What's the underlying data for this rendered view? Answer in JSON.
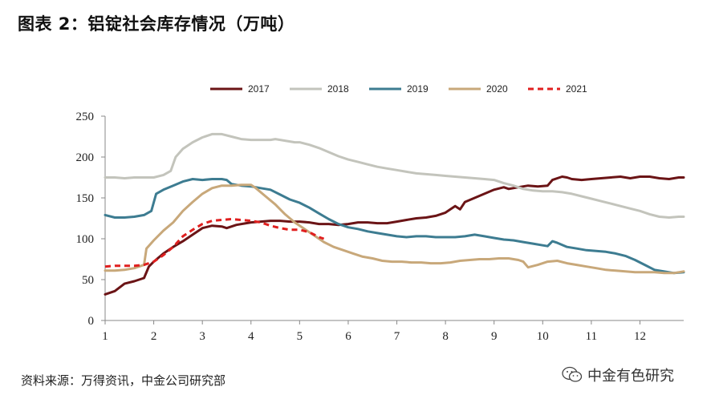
{
  "header": {
    "title": "图表 2：铝锭社会库存情况（万吨）"
  },
  "footer": {
    "source": "资料来源：万得资讯，中金公司研究部",
    "brand": "中金有色研究",
    "brand_icon": "wechat-icon"
  },
  "chart_data": {
    "type": "line",
    "title": "",
    "xlabel": "",
    "ylabel": "",
    "xlim": [
      1,
      12.9
    ],
    "ylim": [
      0,
      250
    ],
    "xticks": [
      1,
      2,
      3,
      4,
      5,
      6,
      7,
      8,
      9,
      10,
      11,
      12
    ],
    "xtick_labels": [
      "1",
      "2",
      "3",
      "4",
      "5",
      "6",
      "7",
      "8",
      "9",
      "10",
      "11",
      "12"
    ],
    "yticks": [
      0,
      50,
      100,
      150,
      200,
      250
    ],
    "ytick_labels": [
      "0",
      "50",
      "100",
      "150",
      "200",
      "250"
    ],
    "grid": false,
    "legend_position": "top",
    "series": [
      {
        "name": "2017",
        "color": "#6B1416",
        "dash": "solid",
        "points": [
          [
            1.0,
            32
          ],
          [
            1.2,
            36
          ],
          [
            1.4,
            45
          ],
          [
            1.6,
            48
          ],
          [
            1.8,
            52
          ],
          [
            1.9,
            66
          ],
          [
            2.0,
            72
          ],
          [
            2.2,
            82
          ],
          [
            2.4,
            90
          ],
          [
            2.6,
            97
          ],
          [
            2.8,
            105
          ],
          [
            3.0,
            113
          ],
          [
            3.2,
            116
          ],
          [
            3.4,
            115
          ],
          [
            3.5,
            113
          ],
          [
            3.7,
            117
          ],
          [
            3.9,
            119
          ],
          [
            4.0,
            120
          ],
          [
            4.2,
            121
          ],
          [
            4.4,
            122
          ],
          [
            4.6,
            122
          ],
          [
            4.8,
            121
          ],
          [
            5.0,
            121
          ],
          [
            5.2,
            120
          ],
          [
            5.4,
            118
          ],
          [
            5.6,
            118
          ],
          [
            5.8,
            117
          ],
          [
            6.0,
            118
          ],
          [
            6.2,
            120
          ],
          [
            6.4,
            120
          ],
          [
            6.6,
            119
          ],
          [
            6.8,
            119
          ],
          [
            7.0,
            121
          ],
          [
            7.2,
            123
          ],
          [
            7.4,
            125
          ],
          [
            7.6,
            126
          ],
          [
            7.8,
            128
          ],
          [
            8.0,
            132
          ],
          [
            8.1,
            136
          ],
          [
            8.2,
            140
          ],
          [
            8.3,
            136
          ],
          [
            8.4,
            145
          ],
          [
            8.6,
            150
          ],
          [
            8.8,
            155
          ],
          [
            9.0,
            160
          ],
          [
            9.2,
            163
          ],
          [
            9.3,
            161
          ],
          [
            9.5,
            163
          ],
          [
            9.7,
            165
          ],
          [
            9.9,
            164
          ],
          [
            10.1,
            165
          ],
          [
            10.2,
            172
          ],
          [
            10.4,
            176
          ],
          [
            10.5,
            175
          ],
          [
            10.6,
            173
          ],
          [
            10.8,
            172
          ],
          [
            11.0,
            173
          ],
          [
            11.2,
            174
          ],
          [
            11.4,
            175
          ],
          [
            11.6,
            176
          ],
          [
            11.8,
            174
          ],
          [
            12.0,
            176
          ],
          [
            12.2,
            176
          ],
          [
            12.4,
            174
          ],
          [
            12.6,
            173
          ],
          [
            12.8,
            175
          ],
          [
            12.9,
            175
          ]
        ]
      },
      {
        "name": "2018",
        "color": "#C3C4BC",
        "dash": "solid",
        "points": [
          [
            1.0,
            175
          ],
          [
            1.2,
            175
          ],
          [
            1.4,
            174
          ],
          [
            1.6,
            175
          ],
          [
            1.8,
            175
          ],
          [
            1.9,
            175
          ],
          [
            2.0,
            175
          ],
          [
            2.2,
            178
          ],
          [
            2.35,
            183
          ],
          [
            2.45,
            200
          ],
          [
            2.6,
            210
          ],
          [
            2.8,
            218
          ],
          [
            3.0,
            224
          ],
          [
            3.2,
            228
          ],
          [
            3.4,
            228
          ],
          [
            3.6,
            225
          ],
          [
            3.8,
            222
          ],
          [
            4.0,
            221
          ],
          [
            4.2,
            221
          ],
          [
            4.4,
            221
          ],
          [
            4.5,
            222
          ],
          [
            4.7,
            220
          ],
          [
            4.9,
            218
          ],
          [
            5.0,
            218
          ],
          [
            5.2,
            215
          ],
          [
            5.4,
            211
          ],
          [
            5.6,
            206
          ],
          [
            5.8,
            201
          ],
          [
            6.0,
            197
          ],
          [
            6.2,
            194
          ],
          [
            6.4,
            191
          ],
          [
            6.6,
            188
          ],
          [
            6.8,
            186
          ],
          [
            7.0,
            184
          ],
          [
            7.2,
            182
          ],
          [
            7.4,
            180
          ],
          [
            7.6,
            179
          ],
          [
            7.8,
            178
          ],
          [
            8.0,
            177
          ],
          [
            8.2,
            176
          ],
          [
            8.4,
            175
          ],
          [
            8.6,
            174
          ],
          [
            8.8,
            173
          ],
          [
            9.0,
            172
          ],
          [
            9.2,
            168
          ],
          [
            9.4,
            165
          ],
          [
            9.6,
            161
          ],
          [
            9.8,
            159
          ],
          [
            10.0,
            158
          ],
          [
            10.2,
            158
          ],
          [
            10.4,
            157
          ],
          [
            10.6,
            155
          ],
          [
            10.8,
            152
          ],
          [
            11.0,
            149
          ],
          [
            11.2,
            146
          ],
          [
            11.4,
            143
          ],
          [
            11.6,
            140
          ],
          [
            11.8,
            137
          ],
          [
            12.0,
            134
          ],
          [
            12.2,
            130
          ],
          [
            12.4,
            127
          ],
          [
            12.6,
            126
          ],
          [
            12.8,
            127
          ],
          [
            12.9,
            127
          ]
        ]
      },
      {
        "name": "2019",
        "color": "#3D7C91",
        "dash": "solid",
        "points": [
          [
            1.0,
            129
          ],
          [
            1.2,
            126
          ],
          [
            1.4,
            126
          ],
          [
            1.6,
            127
          ],
          [
            1.8,
            129
          ],
          [
            1.95,
            134
          ],
          [
            2.05,
            155
          ],
          [
            2.2,
            160
          ],
          [
            2.4,
            165
          ],
          [
            2.6,
            170
          ],
          [
            2.8,
            173
          ],
          [
            3.0,
            172
          ],
          [
            3.2,
            173
          ],
          [
            3.4,
            173
          ],
          [
            3.5,
            172
          ],
          [
            3.6,
            167
          ],
          [
            3.8,
            165
          ],
          [
            4.0,
            164
          ],
          [
            4.2,
            162
          ],
          [
            4.4,
            160
          ],
          [
            4.6,
            154
          ],
          [
            4.8,
            148
          ],
          [
            5.0,
            144
          ],
          [
            5.2,
            138
          ],
          [
            5.4,
            131
          ],
          [
            5.6,
            124
          ],
          [
            5.8,
            118
          ],
          [
            6.0,
            114
          ],
          [
            6.2,
            112
          ],
          [
            6.4,
            109
          ],
          [
            6.6,
            107
          ],
          [
            6.8,
            105
          ],
          [
            7.0,
            103
          ],
          [
            7.2,
            102
          ],
          [
            7.4,
            103
          ],
          [
            7.6,
            103
          ],
          [
            7.8,
            102
          ],
          [
            8.0,
            102
          ],
          [
            8.2,
            102
          ],
          [
            8.4,
            103
          ],
          [
            8.6,
            105
          ],
          [
            8.8,
            103
          ],
          [
            9.0,
            101
          ],
          [
            9.2,
            99
          ],
          [
            9.4,
            98
          ],
          [
            9.6,
            96
          ],
          [
            9.8,
            94
          ],
          [
            10.0,
            92
          ],
          [
            10.1,
            91
          ],
          [
            10.2,
            97
          ],
          [
            10.3,
            95
          ],
          [
            10.5,
            90
          ],
          [
            10.7,
            88
          ],
          [
            10.9,
            86
          ],
          [
            11.1,
            85
          ],
          [
            11.3,
            84
          ],
          [
            11.5,
            82
          ],
          [
            11.7,
            79
          ],
          [
            11.9,
            74
          ],
          [
            12.1,
            68
          ],
          [
            12.3,
            62
          ],
          [
            12.5,
            60
          ],
          [
            12.7,
            58
          ],
          [
            12.9,
            59
          ]
        ]
      },
      {
        "name": "2020",
        "color": "#C8A87A",
        "dash": "solid",
        "points": [
          [
            1.0,
            61
          ],
          [
            1.2,
            61
          ],
          [
            1.4,
            62
          ],
          [
            1.6,
            64
          ],
          [
            1.8,
            68
          ],
          [
            1.85,
            88
          ],
          [
            2.0,
            98
          ],
          [
            2.2,
            110
          ],
          [
            2.4,
            120
          ],
          [
            2.6,
            134
          ],
          [
            2.8,
            145
          ],
          [
            3.0,
            155
          ],
          [
            3.2,
            162
          ],
          [
            3.4,
            165
          ],
          [
            3.6,
            165
          ],
          [
            3.8,
            166
          ],
          [
            4.0,
            166
          ],
          [
            4.1,
            162
          ],
          [
            4.3,
            152
          ],
          [
            4.5,
            142
          ],
          [
            4.7,
            130
          ],
          [
            4.9,
            120
          ],
          [
            5.1,
            112
          ],
          [
            5.3,
            104
          ],
          [
            5.5,
            96
          ],
          [
            5.7,
            90
          ],
          [
            5.9,
            86
          ],
          [
            6.1,
            82
          ],
          [
            6.3,
            78
          ],
          [
            6.5,
            76
          ],
          [
            6.7,
            73
          ],
          [
            6.9,
            72
          ],
          [
            7.1,
            72
          ],
          [
            7.3,
            71
          ],
          [
            7.5,
            71
          ],
          [
            7.7,
            70
          ],
          [
            7.9,
            70
          ],
          [
            8.1,
            71
          ],
          [
            8.3,
            73
          ],
          [
            8.5,
            74
          ],
          [
            8.7,
            75
          ],
          [
            8.9,
            75
          ],
          [
            9.1,
            76
          ],
          [
            9.3,
            76
          ],
          [
            9.5,
            74
          ],
          [
            9.6,
            72
          ],
          [
            9.7,
            65
          ],
          [
            9.9,
            68
          ],
          [
            10.1,
            72
          ],
          [
            10.3,
            73
          ],
          [
            10.5,
            70
          ],
          [
            10.7,
            68
          ],
          [
            10.9,
            66
          ],
          [
            11.1,
            64
          ],
          [
            11.3,
            62
          ],
          [
            11.5,
            61
          ],
          [
            11.7,
            60
          ],
          [
            11.9,
            59
          ],
          [
            12.1,
            59
          ],
          [
            12.3,
            59
          ],
          [
            12.5,
            58
          ],
          [
            12.7,
            58
          ],
          [
            12.9,
            60
          ]
        ]
      },
      {
        "name": "2021",
        "color": "#E01F1F",
        "dash": "dashed",
        "points": [
          [
            1.0,
            66
          ],
          [
            1.2,
            67
          ],
          [
            1.4,
            67
          ],
          [
            1.6,
            67
          ],
          [
            1.8,
            68
          ],
          [
            2.0,
            72
          ],
          [
            2.2,
            80
          ],
          [
            2.4,
            90
          ],
          [
            2.6,
            103
          ],
          [
            2.8,
            111
          ],
          [
            3.0,
            118
          ],
          [
            3.2,
            122
          ],
          [
            3.4,
            123
          ],
          [
            3.6,
            124
          ],
          [
            3.8,
            123
          ],
          [
            4.0,
            122
          ],
          [
            4.2,
            120
          ],
          [
            4.4,
            116
          ],
          [
            4.6,
            113
          ],
          [
            4.8,
            111
          ],
          [
            5.0,
            111
          ],
          [
            5.2,
            108
          ],
          [
            5.4,
            102
          ],
          [
            5.5,
            100
          ]
        ]
      }
    ]
  }
}
